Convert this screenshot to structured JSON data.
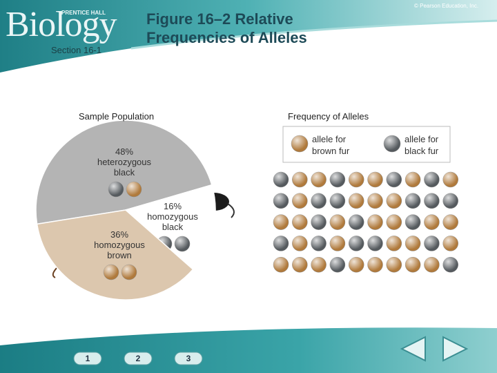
{
  "header": {
    "logo": "Biology",
    "publisher": "PRENTICE HALL",
    "section": "Section 16-1",
    "title": "Figure 16–2 Relative Frequencies of Alleles",
    "copyright": "© Pearson Education, Inc."
  },
  "chart_data": {
    "type": "pie",
    "title": "Sample Population",
    "categories": [
      "heterozygous black",
      "homozygous black",
      "homozygous brown"
    ],
    "values": [
      48,
      16,
      36
    ],
    "value_labels": [
      "48%",
      "16%",
      "36%"
    ],
    "colors": [
      "#b4b4b4",
      "#ffffff",
      "#dcc7ae"
    ]
  },
  "allele_panel": {
    "title": "Frequency of Alleles",
    "legend": [
      {
        "label": "allele for brown fur",
        "color": "#b07a3c"
      },
      {
        "label": "allele for black fur",
        "color": "#555a5e"
      }
    ],
    "rows": [
      [
        "#555a5e",
        "#b07a3c",
        "#b07a3c",
        "#555a5e",
        "#b07a3c",
        "#b07a3c",
        "#555a5e",
        "#b07a3c",
        "#555a5e",
        "#b07a3c"
      ],
      [
        "#555a5e",
        "#b07a3c",
        "#555a5e",
        "#555a5e",
        "#b07a3c",
        "#b07a3c",
        "#b07a3c",
        "#555a5e",
        "#555a5e",
        "#555a5e"
      ],
      [
        "#b07a3c",
        "#b07a3c",
        "#555a5e",
        "#b07a3c",
        "#555a5e",
        "#b07a3c",
        "#b07a3c",
        "#555a5e",
        "#b07a3c",
        "#b07a3c"
      ],
      [
        "#555a5e",
        "#b07a3c",
        "#555a5e",
        "#b07a3c",
        "#555a5e",
        "#555a5e",
        "#b07a3c",
        "#b07a3c",
        "#555a5e",
        "#b07a3c"
      ],
      [
        "#b07a3c",
        "#b07a3c",
        "#b07a3c",
        "#555a5e",
        "#b07a3c",
        "#b07a3c",
        "#b07a3c",
        "#b07a3c",
        "#b07a3c",
        "#555a5e"
      ]
    ]
  },
  "nav": {
    "buttons": [
      "1",
      "2",
      "3"
    ]
  }
}
